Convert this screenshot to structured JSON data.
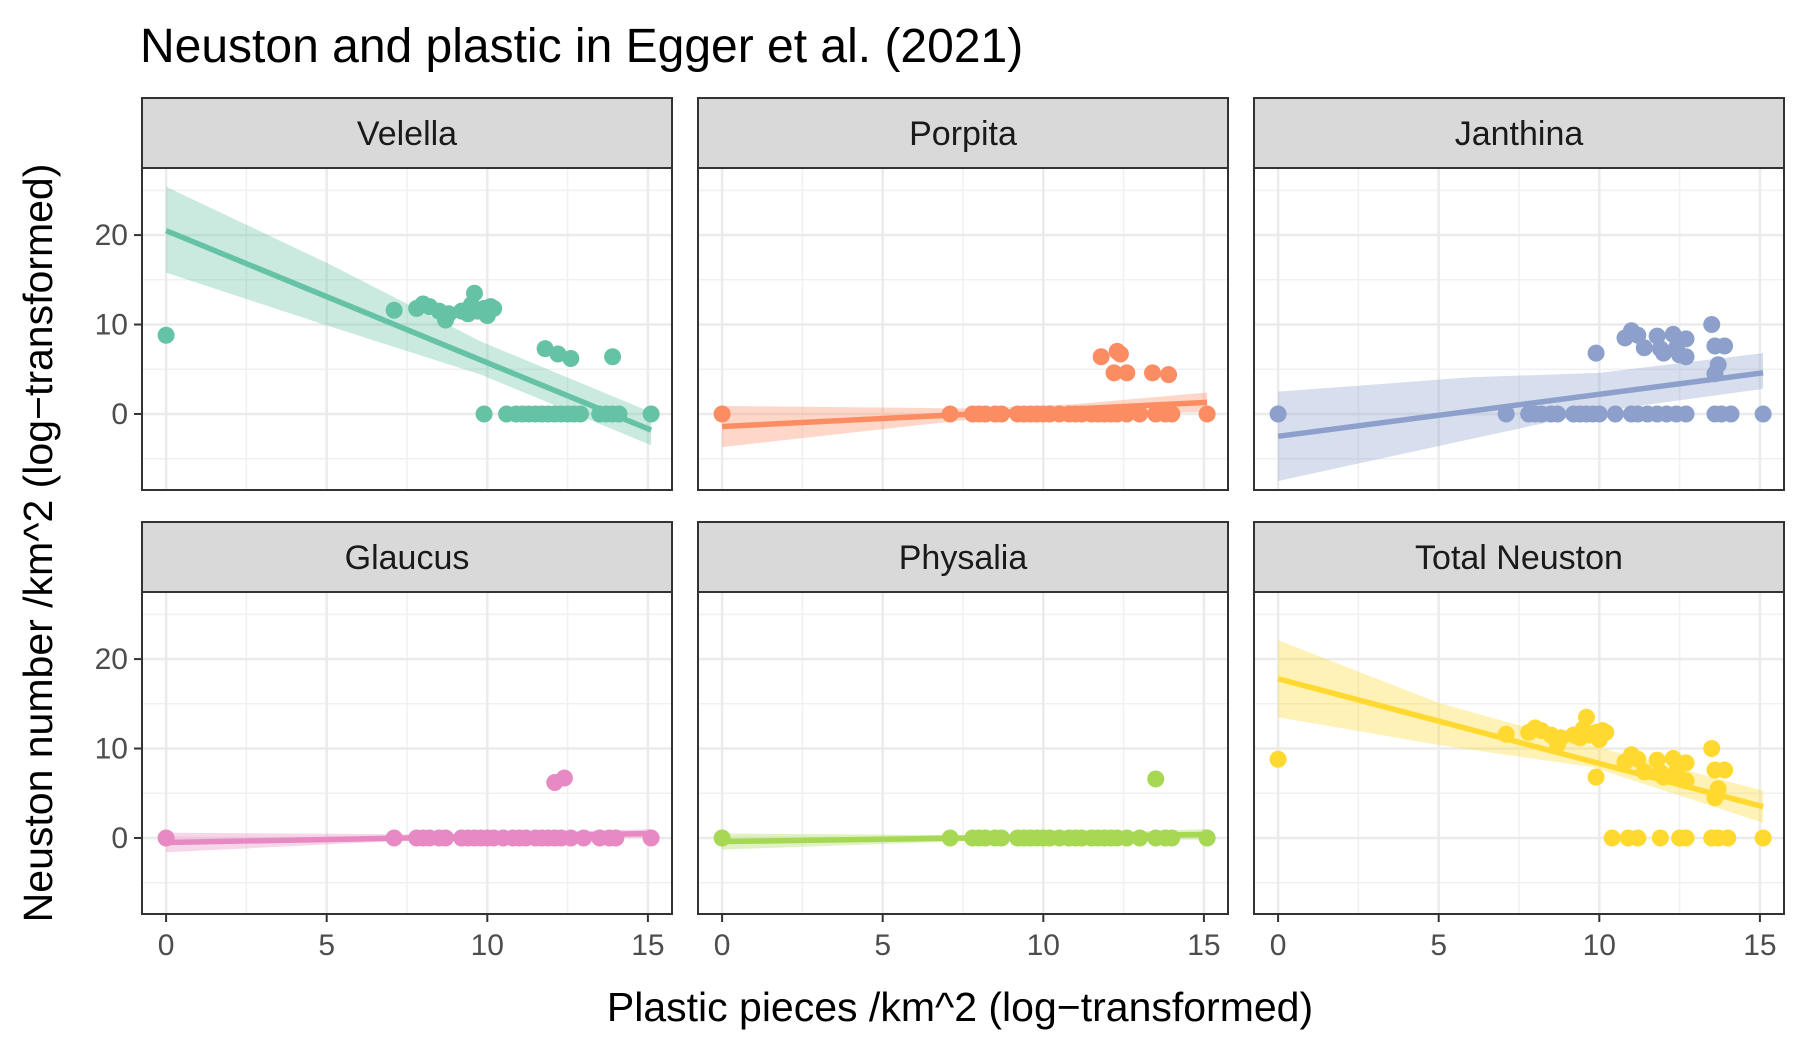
{
  "title": "Neuston and plastic in Egger et al. (2021)",
  "xlabel": "Plastic pieces /km^2 (log−transformed)",
  "ylabel": "Neuston number /km^2 (log−transformed)",
  "chart_data": {
    "type": "scatter",
    "facet_layout": "2 rows x 3 columns",
    "xlim": [
      -0.75,
      15.75
    ],
    "ylim": [
      -8.5,
      27.5
    ],
    "x_ticks": [
      0,
      5,
      10,
      15
    ],
    "y_ticks": [
      0,
      10,
      20
    ],
    "grid": "on",
    "legend": "none",
    "panels": [
      {
        "name": "Velella",
        "color": "#66C2A5",
        "points": [
          [
            0,
            8.8
          ],
          [
            7.1,
            11.6
          ],
          [
            7.8,
            11.8
          ],
          [
            8.0,
            12.3
          ],
          [
            8.2,
            12.0
          ],
          [
            8.5,
            11.5
          ],
          [
            8.7,
            10.5
          ],
          [
            8.8,
            11.2
          ],
          [
            9.2,
            11.5
          ],
          [
            9.4,
            11.2
          ],
          [
            9.5,
            12.2
          ],
          [
            9.6,
            13.5
          ],
          [
            9.7,
            11.5
          ],
          [
            9.9,
            11.8
          ],
          [
            10.0,
            11.0
          ],
          [
            10.1,
            12.0
          ],
          [
            10.2,
            11.8
          ],
          [
            9.9,
            0
          ],
          [
            10.6,
            0
          ],
          [
            10.9,
            0
          ],
          [
            11.1,
            0
          ],
          [
            11.3,
            0
          ],
          [
            11.5,
            0
          ],
          [
            11.7,
            0
          ],
          [
            11.9,
            0
          ],
          [
            12.1,
            0
          ],
          [
            12.3,
            0
          ],
          [
            12.5,
            0
          ],
          [
            12.7,
            0
          ],
          [
            12.9,
            0
          ],
          [
            13.5,
            0
          ],
          [
            13.7,
            0
          ],
          [
            13.9,
            0
          ],
          [
            14.1,
            0
          ],
          [
            15.1,
            0
          ],
          [
            11.8,
            7.3
          ],
          [
            12.2,
            6.7
          ],
          [
            12.6,
            6.2
          ],
          [
            13.9,
            6.4
          ]
        ],
        "fit": {
          "x": [
            0,
            15.1
          ],
          "y": [
            20.5,
            -1.8
          ]
        },
        "ci_lower": [
          [
            0,
            15.8
          ],
          [
            5,
            9.9
          ],
          [
            9.8,
            4.4
          ],
          [
            15.1,
            -3.5
          ]
        ],
        "ci_upper": [
          [
            0,
            25.4
          ],
          [
            5,
            16.9
          ],
          [
            9.8,
            8.1
          ],
          [
            15.1,
            0.2
          ]
        ]
      },
      {
        "name": "Porpita",
        "color": "#FC8D62",
        "points": [
          [
            0,
            0
          ],
          [
            7.1,
            0
          ],
          [
            7.8,
            0
          ],
          [
            8.0,
            0
          ],
          [
            8.2,
            0
          ],
          [
            8.5,
            0
          ],
          [
            8.7,
            0
          ],
          [
            9.2,
            0
          ],
          [
            9.4,
            0
          ],
          [
            9.6,
            0
          ],
          [
            9.8,
            0
          ],
          [
            10.0,
            0
          ],
          [
            10.2,
            0
          ],
          [
            10.5,
            0
          ],
          [
            10.8,
            0
          ],
          [
            11.0,
            0
          ],
          [
            11.2,
            0
          ],
          [
            11.5,
            0
          ],
          [
            11.7,
            0
          ],
          [
            11.9,
            0
          ],
          [
            12.1,
            0
          ],
          [
            12.3,
            0
          ],
          [
            12.6,
            0
          ],
          [
            13.0,
            0
          ],
          [
            13.5,
            0
          ],
          [
            13.8,
            0
          ],
          [
            14.0,
            0
          ],
          [
            15.1,
            0
          ],
          [
            11.8,
            6.4
          ],
          [
            12.3,
            7.0
          ],
          [
            12.4,
            6.7
          ],
          [
            12.2,
            4.6
          ],
          [
            12.6,
            4.6
          ],
          [
            13.4,
            4.6
          ],
          [
            13.9,
            4.4
          ]
        ],
        "fit": {
          "x": [
            0,
            15.1
          ],
          "y": [
            -1.4,
            1.3
          ]
        },
        "ci_lower": [
          [
            0,
            -3.7
          ],
          [
            8,
            -0.5
          ],
          [
            11,
            0.0
          ],
          [
            15.1,
            0.2
          ]
        ],
        "ci_upper": [
          [
            0,
            0.9
          ],
          [
            8,
            0.6
          ],
          [
            11,
            1.1
          ],
          [
            15.1,
            2.4
          ]
        ]
      },
      {
        "name": "Janthina",
        "color": "#8DA0CB",
        "points": [
          [
            0,
            0
          ],
          [
            7.1,
            0
          ],
          [
            7.8,
            0
          ],
          [
            8.0,
            0
          ],
          [
            8.2,
            0
          ],
          [
            8.5,
            0
          ],
          [
            8.7,
            0
          ],
          [
            9.2,
            0
          ],
          [
            9.4,
            0
          ],
          [
            9.6,
            0
          ],
          [
            9.8,
            0
          ],
          [
            10.0,
            0
          ],
          [
            10.5,
            0
          ],
          [
            11.0,
            0
          ],
          [
            11.2,
            0
          ],
          [
            11.5,
            0
          ],
          [
            11.8,
            0
          ],
          [
            12.1,
            0
          ],
          [
            12.4,
            0
          ],
          [
            12.7,
            0
          ],
          [
            13.6,
            0
          ],
          [
            13.8,
            0
          ],
          [
            14.1,
            0
          ],
          [
            15.1,
            0
          ],
          [
            9.9,
            6.8
          ],
          [
            10.8,
            8.5
          ],
          [
            11.0,
            9.3
          ],
          [
            11.2,
            8.8
          ],
          [
            11.4,
            7.4
          ],
          [
            11.8,
            8.7
          ],
          [
            11.9,
            7.3
          ],
          [
            12.0,
            6.8
          ],
          [
            12.3,
            8.9
          ],
          [
            12.4,
            7.4
          ],
          [
            12.5,
            6.6
          ],
          [
            12.7,
            8.4
          ],
          [
            12.7,
            6.4
          ],
          [
            13.5,
            10.0
          ],
          [
            13.6,
            7.6
          ],
          [
            13.7,
            5.5
          ],
          [
            13.9,
            7.6
          ],
          [
            13.6,
            4.5
          ]
        ],
        "fit": {
          "x": [
            0,
            15.1
          ],
          "y": [
            -2.5,
            4.6
          ]
        },
        "ci_lower": [
          [
            0,
            -7.5
          ],
          [
            6,
            -2.8
          ],
          [
            10,
            0.3
          ],
          [
            15.1,
            2.8
          ]
        ],
        "ci_upper": [
          [
            0,
            2.5
          ],
          [
            6,
            4.1
          ],
          [
            10,
            4.6
          ],
          [
            15.1,
            6.8
          ]
        ]
      },
      {
        "name": "Glaucus",
        "color": "#E78AC3",
        "points": [
          [
            0,
            0
          ],
          [
            7.1,
            0
          ],
          [
            7.8,
            0
          ],
          [
            8.0,
            0
          ],
          [
            8.2,
            0
          ],
          [
            8.5,
            0
          ],
          [
            8.7,
            0
          ],
          [
            9.2,
            0
          ],
          [
            9.4,
            0
          ],
          [
            9.6,
            0
          ],
          [
            9.8,
            0
          ],
          [
            10.0,
            0
          ],
          [
            10.2,
            0
          ],
          [
            10.5,
            0
          ],
          [
            10.8,
            0
          ],
          [
            11.0,
            0
          ],
          [
            11.2,
            0
          ],
          [
            11.5,
            0
          ],
          [
            11.7,
            0
          ],
          [
            11.9,
            0
          ],
          [
            12.1,
            0
          ],
          [
            12.3,
            0
          ],
          [
            12.6,
            0
          ],
          [
            13.0,
            0
          ],
          [
            13.5,
            0
          ],
          [
            13.8,
            0
          ],
          [
            14.0,
            0
          ],
          [
            15.1,
            0
          ],
          [
            12.1,
            6.2
          ],
          [
            12.4,
            6.7
          ]
        ],
        "fit": {
          "x": [
            0,
            15.1
          ],
          "y": [
            -0.5,
            0.5
          ]
        },
        "ci_lower": [
          [
            0,
            -1.6
          ],
          [
            8,
            -0.2
          ],
          [
            11,
            0.1
          ],
          [
            15.1,
            0.0
          ]
        ],
        "ci_upper": [
          [
            0,
            0.6
          ],
          [
            8,
            0.4
          ],
          [
            11,
            0.6
          ],
          [
            15.1,
            1.0
          ]
        ]
      },
      {
        "name": "Physalia",
        "color": "#A6D854",
        "points": [
          [
            0,
            0
          ],
          [
            7.1,
            0
          ],
          [
            7.8,
            0
          ],
          [
            8.0,
            0
          ],
          [
            8.2,
            0
          ],
          [
            8.5,
            0
          ],
          [
            8.7,
            0
          ],
          [
            9.2,
            0
          ],
          [
            9.4,
            0
          ],
          [
            9.6,
            0
          ],
          [
            9.8,
            0
          ],
          [
            10.0,
            0
          ],
          [
            10.2,
            0
          ],
          [
            10.5,
            0
          ],
          [
            10.8,
            0
          ],
          [
            11.0,
            0
          ],
          [
            11.2,
            0
          ],
          [
            11.5,
            0
          ],
          [
            11.7,
            0
          ],
          [
            11.9,
            0
          ],
          [
            12.1,
            0
          ],
          [
            12.3,
            0
          ],
          [
            12.6,
            0
          ],
          [
            13.0,
            0
          ],
          [
            13.5,
            0
          ],
          [
            13.8,
            0
          ],
          [
            14.0,
            0
          ],
          [
            15.1,
            0
          ],
          [
            13.5,
            6.6
          ]
        ],
        "fit": {
          "x": [
            0,
            15.1
          ],
          "y": [
            -0.4,
            0.4
          ]
        },
        "ci_lower": [
          [
            0,
            -1.3
          ],
          [
            8,
            -0.3
          ],
          [
            11,
            0.0
          ],
          [
            15.1,
            -0.2
          ]
        ],
        "ci_upper": [
          [
            0,
            0.5
          ],
          [
            8,
            0.3
          ],
          [
            11,
            0.5
          ],
          [
            15.1,
            1.0
          ]
        ]
      },
      {
        "name": "Total Neuston",
        "color": "#FFD92F",
        "points": [
          [
            0,
            8.8
          ],
          [
            7.1,
            11.6
          ],
          [
            7.8,
            11.8
          ],
          [
            8.0,
            12.3
          ],
          [
            8.2,
            12.0
          ],
          [
            8.5,
            11.5
          ],
          [
            8.7,
            10.5
          ],
          [
            8.8,
            11.2
          ],
          [
            9.2,
            11.5
          ],
          [
            9.4,
            11.2
          ],
          [
            9.5,
            12.2
          ],
          [
            9.6,
            13.5
          ],
          [
            9.7,
            11.5
          ],
          [
            9.9,
            11.8
          ],
          [
            10.0,
            11.0
          ],
          [
            10.1,
            12.0
          ],
          [
            10.2,
            11.8
          ],
          [
            9.9,
            6.8
          ],
          [
            10.8,
            8.5
          ],
          [
            11.0,
            9.3
          ],
          [
            11.2,
            8.8
          ],
          [
            11.4,
            7.4
          ],
          [
            11.8,
            8.7
          ],
          [
            11.9,
            7.3
          ],
          [
            12.0,
            6.8
          ],
          [
            12.3,
            8.9
          ],
          [
            12.4,
            7.4
          ],
          [
            12.5,
            6.6
          ],
          [
            12.7,
            8.4
          ],
          [
            12.7,
            6.4
          ],
          [
            13.5,
            10.0
          ],
          [
            13.6,
            7.6
          ],
          [
            13.7,
            5.5
          ],
          [
            13.9,
            7.6
          ],
          [
            13.6,
            4.5
          ],
          [
            10.4,
            0
          ],
          [
            10.9,
            0
          ],
          [
            11.2,
            0
          ],
          [
            11.9,
            0
          ],
          [
            12.5,
            0
          ],
          [
            12.7,
            0
          ],
          [
            13.5,
            0
          ],
          [
            13.7,
            0
          ],
          [
            14.0,
            0
          ],
          [
            15.1,
            0
          ]
        ],
        "fit": {
          "x": [
            0,
            15.1
          ],
          "y": [
            17.8,
            3.5
          ]
        },
        "ci_lower": [
          [
            0,
            13.5
          ],
          [
            5,
            10.4
          ],
          [
            9.8,
            7.9
          ],
          [
            15.1,
            1.7
          ]
        ],
        "ci_upper": [
          [
            0,
            22.1
          ],
          [
            5,
            15.1
          ],
          [
            9.8,
            10.3
          ],
          [
            15.1,
            5.3
          ]
        ]
      }
    ]
  }
}
